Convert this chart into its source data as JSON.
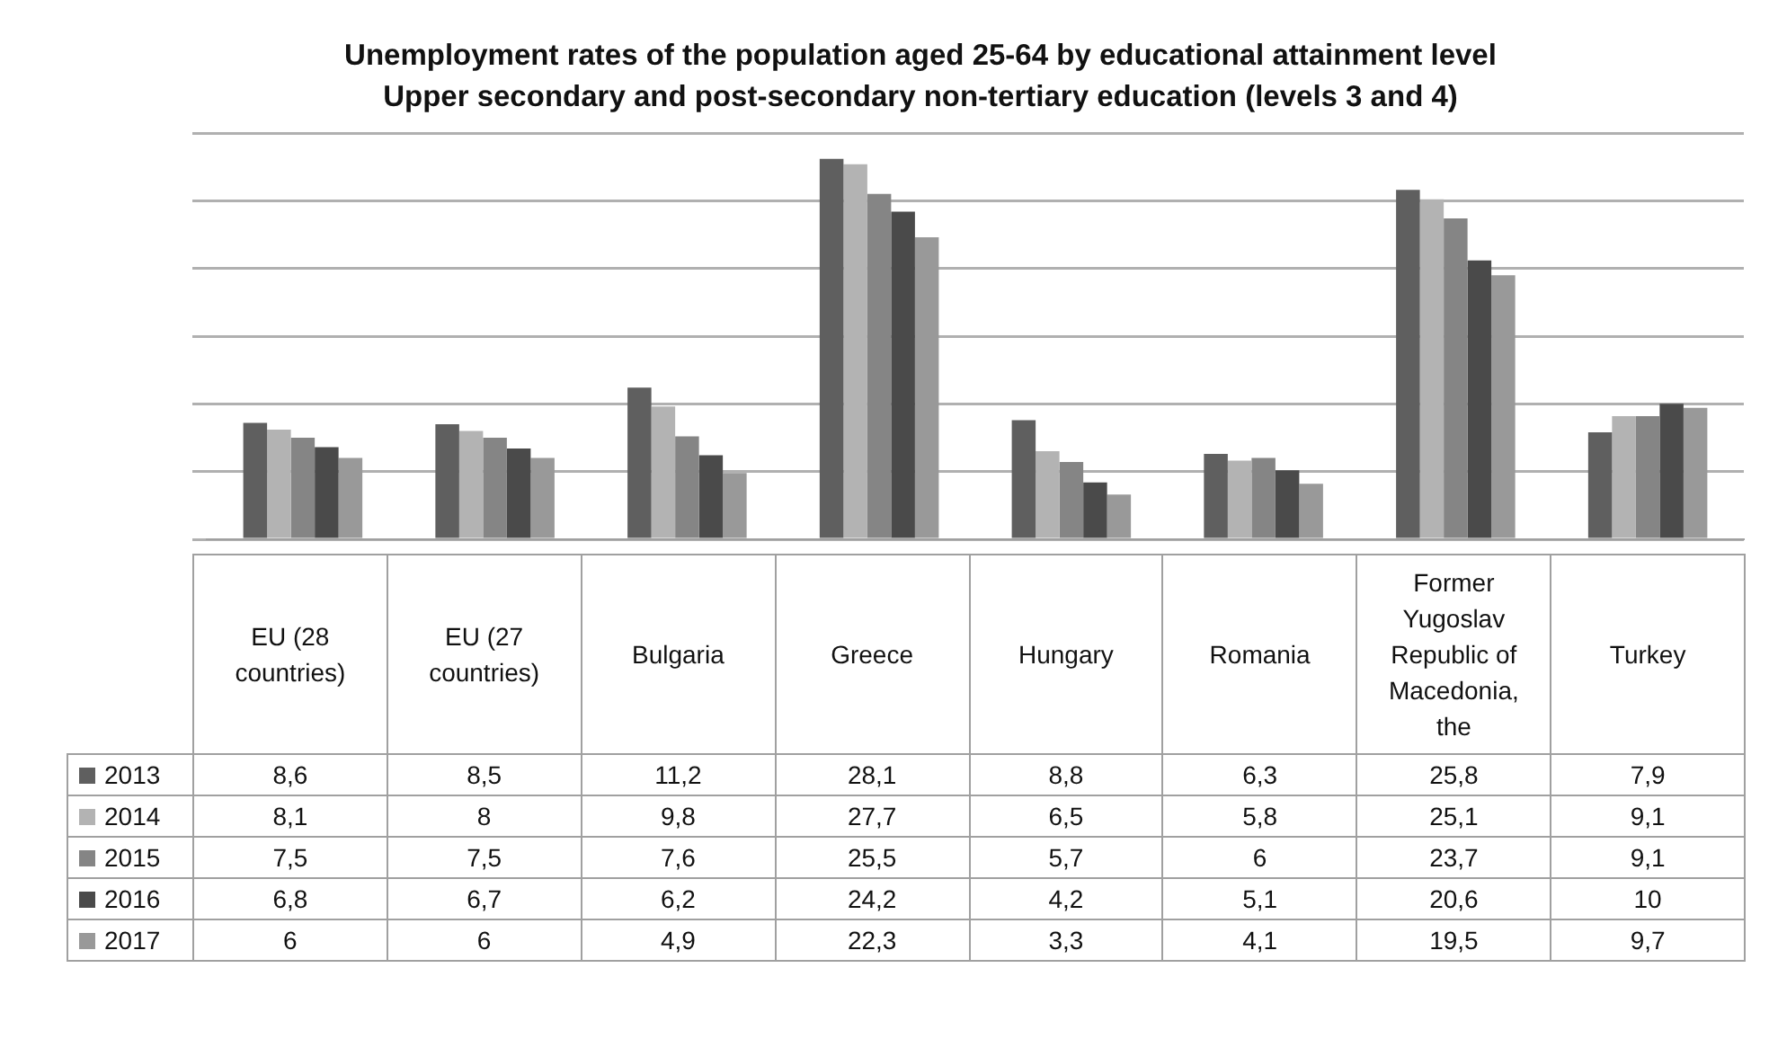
{
  "chart_data": {
    "type": "bar",
    "title": "Unemployment rates of the population aged 25-64 by educational attainment level",
    "subtitle": "Upper secondary and post-secondary non-tertiary education (levels 3 and 4)",
    "categories": [
      "EU (28 countries)",
      "EU (27 countries)",
      "Bulgaria",
      "Greece",
      "Hungary",
      "Romania",
      "Former Yugoslav Republic of Macedonia, the",
      "Turkey"
    ],
    "series": [
      {
        "name": "2013",
        "color": "#5f5f5f",
        "values": [
          8.6,
          8.5,
          11.2,
          28.1,
          8.8,
          6.3,
          25.8,
          7.9
        ],
        "value_labels": [
          "8,6",
          "8,5",
          "11,2",
          "28,1",
          "8,8",
          "6,3",
          "25,8",
          "7,9"
        ]
      },
      {
        "name": "2014",
        "color": "#b3b3b3",
        "values": [
          8.1,
          8,
          9.8,
          27.7,
          6.5,
          5.8,
          25.1,
          9.1
        ],
        "value_labels": [
          "8,1",
          "8",
          "9,8",
          "27,7",
          "6,5",
          "5,8",
          "25,1",
          "9,1"
        ]
      },
      {
        "name": "2015",
        "color": "#858585",
        "values": [
          7.5,
          7.5,
          7.6,
          25.5,
          5.7,
          6,
          23.7,
          9.1
        ],
        "value_labels": [
          "7,5",
          "7,5",
          "7,6",
          "25,5",
          "5,7",
          "6",
          "23,7",
          "9,1"
        ]
      },
      {
        "name": "2016",
        "color": "#4a4a4a",
        "values": [
          6.8,
          6.7,
          6.2,
          24.2,
          4.2,
          5.1,
          20.6,
          10
        ],
        "value_labels": [
          "6,8",
          "6,7",
          "6,2",
          "24,2",
          "4,2",
          "5,1",
          "20,6",
          "10"
        ]
      },
      {
        "name": "2017",
        "color": "#999999",
        "values": [
          6,
          6,
          4.9,
          22.3,
          3.3,
          4.1,
          19.5,
          9.7
        ],
        "value_labels": [
          "6",
          "6",
          "4,9",
          "22,3",
          "3,3",
          "4,1",
          "19,5",
          "9,7"
        ]
      }
    ],
    "grid": "y",
    "legend": "bottom"
  }
}
